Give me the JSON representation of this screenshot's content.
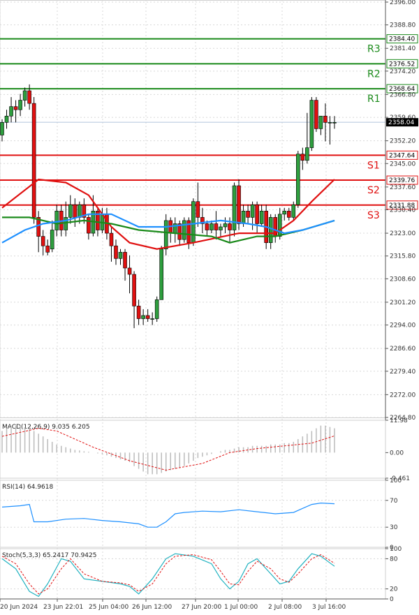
{
  "chart_data": {
    "type": "candlestick",
    "title": "",
    "price_axis": {
      "ylim": [
        2264.8,
        2396.0
      ],
      "ticks": [
        "2396.00",
        "2388.80",
        "2381.40",
        "2374.20",
        "2366.80",
        "2359.60",
        "2352.20",
        "2345.00",
        "2337.60",
        "2330.40",
        "2323.00",
        "2315.80",
        "2308.60",
        "2301.20",
        "2294.00",
        "2286.60",
        "2279.40",
        "2272.00",
        "2264.80"
      ]
    },
    "x_labels": [
      "20 Jun 2024",
      "23 Jun 22:01",
      "25 Jun 04:00",
      "26 Jun 12:00",
      "27 Jun 20:00",
      "1 Jul 00:00",
      "2 Jul 08:00",
      "3 Jul 16:00"
    ],
    "current_price": "2358.04",
    "levels": [
      {
        "name": "R3",
        "value": 2384.4,
        "label": "2384.40",
        "color": "#1a8a1a"
      },
      {
        "name": "R2",
        "value": 2376.52,
        "label": "2376.52",
        "color": "#1a8a1a"
      },
      {
        "name": "R1",
        "value": 2368.64,
        "label": "2368.64",
        "color": "#1a8a1a"
      },
      {
        "name": "S1",
        "value": 2347.64,
        "label": "2347.64",
        "color": "#e01010"
      },
      {
        "name": "S2",
        "value": 2339.76,
        "label": "2339.76",
        "color": "#e01010"
      },
      {
        "name": "S3",
        "value": 2331.88,
        "label": "2331.88",
        "color": "#e01010"
      }
    ],
    "candles": [
      [
        2354,
        2358,
        2352,
        2359
      ],
      [
        2358,
        2360,
        2356,
        2362
      ],
      [
        2360,
        2363,
        2358,
        2366
      ],
      [
        2363,
        2362,
        2358,
        2365
      ],
      [
        2362,
        2365,
        2360,
        2367
      ],
      [
        2365,
        2368,
        2363,
        2369
      ],
      [
        2368,
        2364,
        2362,
        2370
      ],
      [
        2364,
        2328,
        2326,
        2366
      ],
      [
        2328,
        2322,
        2317,
        2330
      ],
      [
        2322,
        2319,
        2316,
        2324
      ],
      [
        2319,
        2317,
        2316,
        2321
      ],
      [
        2318,
        2324,
        2317,
        2327
      ],
      [
        2324,
        2330,
        2322,
        2332
      ],
      [
        2330,
        2324,
        2322,
        2332
      ],
      [
        2324,
        2328,
        2322,
        2333
      ],
      [
        2328,
        2332,
        2326,
        2335
      ],
      [
        2332,
        2328,
        2325,
        2334
      ],
      [
        2328,
        2332,
        2326,
        2333
      ],
      [
        2332,
        2328,
        2326,
        2334
      ],
      [
        2328,
        2323,
        2321,
        2329
      ],
      [
        2323,
        2330,
        2322,
        2335
      ],
      [
        2330,
        2324,
        2322,
        2331
      ],
      [
        2324,
        2329,
        2323,
        2331
      ],
      [
        2329,
        2323,
        2321,
        2331
      ],
      [
        2323,
        2319,
        2314,
        2325
      ],
      [
        2319,
        2315,
        2313,
        2321
      ],
      [
        2315,
        2317,
        2313,
        2318
      ],
      [
        2317,
        2312,
        2308,
        2318
      ],
      [
        2312,
        2310,
        2304,
        2316
      ],
      [
        2310,
        2300,
        2293,
        2311
      ],
      [
        2300,
        2296,
        2294,
        2302
      ],
      [
        2296,
        2297,
        2294,
        2299
      ],
      [
        2297,
        2296,
        2295,
        2299
      ],
      [
        2296,
        2296,
        2294,
        2298
      ],
      [
        2296,
        2302,
        2295,
        2303
      ],
      [
        2302,
        2318,
        2302,
        2319
      ],
      [
        2318,
        2327,
        2316,
        2329
      ],
      [
        2327,
        2323,
        2320,
        2328
      ],
      [
        2323,
        2326,
        2320,
        2328
      ],
      [
        2326,
        2321,
        2319,
        2327
      ],
      [
        2321,
        2327,
        2320,
        2328
      ],
      [
        2327,
        2320,
        2318,
        2328
      ],
      [
        2320,
        2333,
        2319,
        2334
      ],
      [
        2333,
        2328,
        2325,
        2339
      ],
      [
        2328,
        2326,
        2323,
        2331
      ],
      [
        2326,
        2324,
        2322,
        2327
      ],
      [
        2324,
        2326,
        2323,
        2327
      ],
      [
        2326,
        2324,
        2321,
        2330
      ],
      [
        2324,
        2325,
        2322,
        2326
      ],
      [
        2325,
        2326,
        2323,
        2328
      ],
      [
        2326,
        2324,
        2320,
        2328
      ],
      [
        2324,
        2338,
        2322,
        2339
      ],
      [
        2338,
        2326,
        2324,
        2340
      ],
      [
        2326,
        2330,
        2325,
        2332
      ],
      [
        2330,
        2328,
        2326,
        2332
      ],
      [
        2328,
        2332,
        2324,
        2333
      ],
      [
        2332,
        2326,
        2323,
        2333
      ],
      [
        2326,
        2330,
        2325,
        2332
      ],
      [
        2330,
        2320,
        2318,
        2332
      ],
      [
        2320,
        2328,
        2318,
        2329
      ],
      [
        2328,
        2322,
        2320,
        2329
      ],
      [
        2322,
        2329,
        2321,
        2331
      ],
      [
        2329,
        2330,
        2327,
        2331
      ],
      [
        2330,
        2328,
        2327,
        2331
      ],
      [
        2328,
        2332,
        2327,
        2333
      ],
      [
        2332,
        2348,
        2331,
        2349
      ],
      [
        2348,
        2346,
        2343,
        2350
      ],
      [
        2346,
        2350,
        2345,
        2361
      ],
      [
        2350,
        2365,
        2349,
        2366
      ],
      [
        2365,
        2356,
        2355,
        2366
      ],
      [
        2356,
        2360,
        2354,
        2360
      ],
      [
        2360,
        2358,
        2352,
        2364
      ],
      [
        2358,
        2358,
        2351,
        2360
      ],
      [
        2358,
        2358,
        2356,
        2360
      ]
    ],
    "series": [
      {
        "name": "Bollinger upper",
        "color": "#e01010",
        "points": [
          [
            0,
            2331
          ],
          [
            8,
            2340
          ],
          [
            14,
            2339
          ],
          [
            19,
            2335
          ],
          [
            24,
            2325
          ],
          [
            28,
            2320
          ],
          [
            34,
            2318
          ],
          [
            42,
            2320
          ],
          [
            52,
            2323
          ],
          [
            60,
            2323
          ],
          [
            64,
            2327
          ],
          [
            68,
            2333
          ],
          [
            73,
            2340
          ]
        ]
      },
      {
        "name": "MA green",
        "color": "#1a8a1a",
        "points": [
          [
            0,
            2328
          ],
          [
            6,
            2328
          ],
          [
            12,
            2326
          ],
          [
            18,
            2327
          ],
          [
            24,
            2326
          ],
          [
            30,
            2324
          ],
          [
            38,
            2323
          ],
          [
            46,
            2322
          ],
          [
            50,
            2320
          ],
          [
            56,
            2322
          ],
          [
            60,
            2322
          ],
          [
            66,
            2324
          ],
          [
            73,
            2327
          ]
        ]
      },
      {
        "name": "MA blue",
        "color": "#1e90ff",
        "points": [
          [
            0,
            2320
          ],
          [
            5,
            2324
          ],
          [
            9,
            2326
          ],
          [
            14,
            2327
          ],
          [
            19,
            2329
          ],
          [
            24,
            2329
          ],
          [
            30,
            2325
          ],
          [
            36,
            2325
          ],
          [
            42,
            2326
          ],
          [
            48,
            2327
          ],
          [
            54,
            2326
          ],
          [
            58,
            2325
          ],
          [
            62,
            2323
          ],
          [
            66,
            2324
          ],
          [
            73,
            2327
          ]
        ]
      }
    ],
    "macd": {
      "label": "MACD(12,26,9) 9.035 6.205",
      "ticks": [
        "11.98",
        "0.00",
        "-9.461"
      ],
      "range": [
        -9.461,
        11.98
      ],
      "histogram": [
        8,
        9,
        9.5,
        10,
        10,
        9.5,
        9,
        8,
        7,
        6,
        5,
        4,
        3,
        2.5,
        2,
        1.5,
        1,
        0.8,
        0.5,
        0.3,
        0,
        -0.3,
        -0.6,
        -1,
        -1.5,
        -2,
        -2.5,
        -3,
        -3.5,
        -5,
        -6,
        -7,
        -8,
        -8,
        -8,
        -7.5,
        -7,
        -6.5,
        -6,
        -5.5,
        -5,
        -4,
        -3,
        -2,
        -1.5,
        -1,
        -0.5,
        0,
        0.5,
        1,
        1,
        1.5,
        2,
        2,
        2,
        2.5,
        2.5,
        2.5,
        2.5,
        3,
        3,
        3,
        3.5,
        3.5,
        4,
        5,
        6,
        7,
        8,
        9,
        10,
        10,
        9.5,
        9
      ],
      "signal": [
        [
          0,
          6
        ],
        [
          8,
          9
        ],
        [
          12,
          8
        ],
        [
          20,
          2
        ],
        [
          28,
          -3
        ],
        [
          36,
          -6.5
        ],
        [
          44,
          -4
        ],
        [
          50,
          0
        ],
        [
          56,
          1.5
        ],
        [
          62,
          2.5
        ],
        [
          68,
          3.5
        ],
        [
          73,
          6.2
        ]
      ]
    },
    "rsi": {
      "label": "RSI(14) 64.9618",
      "ticks": [
        "100",
        "70",
        "30",
        "0"
      ],
      "range": [
        0,
        100
      ],
      "points": [
        [
          0,
          60
        ],
        [
          4,
          62
        ],
        [
          6,
          64
        ],
        [
          7,
          38
        ],
        [
          10,
          38
        ],
        [
          14,
          42
        ],
        [
          18,
          43
        ],
        [
          22,
          40
        ],
        [
          26,
          38
        ],
        [
          30,
          35
        ],
        [
          32,
          30
        ],
        [
          34,
          30
        ],
        [
          36,
          38
        ],
        [
          38,
          50
        ],
        [
          40,
          52
        ],
        [
          44,
          54
        ],
        [
          48,
          53
        ],
        [
          52,
          56
        ],
        [
          56,
          53
        ],
        [
          60,
          50
        ],
        [
          64,
          52
        ],
        [
          66,
          58
        ],
        [
          68,
          64
        ],
        [
          70,
          66
        ],
        [
          73,
          65
        ]
      ]
    },
    "stoch": {
      "label": "Stoch(5,3,3) 65.2417 70.9425",
      "ticks": [
        "100",
        "80",
        "20",
        "0"
      ],
      "range": [
        0,
        100
      ],
      "k": [
        [
          0,
          80
        ],
        [
          3,
          60
        ],
        [
          6,
          15
        ],
        [
          8,
          5
        ],
        [
          10,
          30
        ],
        [
          13,
          80
        ],
        [
          15,
          75
        ],
        [
          18,
          40
        ],
        [
          22,
          35
        ],
        [
          26,
          30
        ],
        [
          28,
          25
        ],
        [
          30,
          10
        ],
        [
          33,
          40
        ],
        [
          36,
          80
        ],
        [
          38,
          90
        ],
        [
          42,
          85
        ],
        [
          46,
          70
        ],
        [
          48,
          40
        ],
        [
          50,
          20
        ],
        [
          52,
          35
        ],
        [
          54,
          70
        ],
        [
          56,
          80
        ],
        [
          59,
          50
        ],
        [
          61,
          30
        ],
        [
          63,
          35
        ],
        [
          65,
          60
        ],
        [
          68,
          90
        ],
        [
          70,
          85
        ],
        [
          73,
          65
        ]
      ],
      "d": [
        [
          0,
          85
        ],
        [
          3,
          70
        ],
        [
          6,
          30
        ],
        [
          8,
          10
        ],
        [
          10,
          20
        ],
        [
          13,
          60
        ],
        [
          15,
          80
        ],
        [
          18,
          50
        ],
        [
          22,
          35
        ],
        [
          26,
          32
        ],
        [
          28,
          28
        ],
        [
          30,
          15
        ],
        [
          33,
          30
        ],
        [
          36,
          70
        ],
        [
          38,
          85
        ],
        [
          42,
          88
        ],
        [
          46,
          78
        ],
        [
          48,
          55
        ],
        [
          50,
          30
        ],
        [
          52,
          28
        ],
        [
          54,
          55
        ],
        [
          56,
          75
        ],
        [
          59,
          60
        ],
        [
          61,
          40
        ],
        [
          63,
          33
        ],
        [
          65,
          50
        ],
        [
          68,
          80
        ],
        [
          70,
          88
        ],
        [
          73,
          71
        ]
      ]
    }
  }
}
